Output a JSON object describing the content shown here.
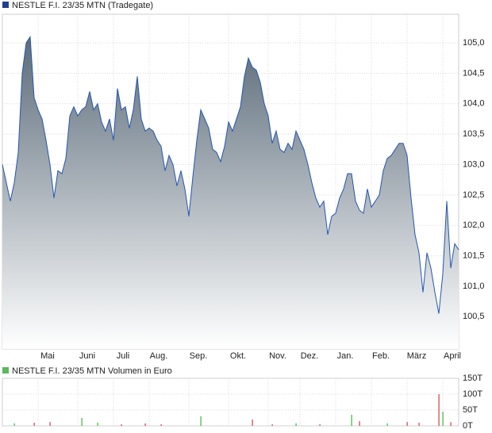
{
  "chart_data": [
    {
      "type": "area",
      "title": "NESTLE F.I. 23/35 MTN (Tradegate)",
      "title_marker_color": "#1f3f8f",
      "color": "#2455b0",
      "fill_top": "#5c6c7a",
      "fill_bottom": "#ffffff",
      "grid": true,
      "categories": [
        null,
        null,
        null,
        null,
        null,
        null,
        null,
        null,
        null,
        "Mai",
        null,
        null,
        null,
        null,
        null,
        null,
        null,
        null,
        null,
        "Juni",
        null,
        null,
        null,
        null,
        null,
        null,
        null,
        null,
        "Juli",
        null,
        null,
        null,
        null,
        null,
        null,
        null,
        null,
        "Aug.",
        null,
        null,
        null,
        null,
        null,
        null,
        null,
        null,
        null,
        "Sep.",
        null,
        null,
        null,
        null,
        null,
        null,
        null,
        null,
        null,
        "Okt.",
        null,
        null,
        null,
        null,
        null,
        null,
        null,
        null,
        null,
        "Nov.",
        null,
        null,
        null,
        null,
        null,
        null,
        null,
        "Dez.",
        null,
        null,
        null,
        null,
        null,
        null,
        null,
        null,
        "Jan.",
        null,
        null,
        null,
        null,
        null,
        null,
        null,
        null,
        "Feb.",
        null,
        null,
        null,
        null,
        null,
        null,
        null,
        null,
        "März",
        null,
        null,
        null,
        null,
        null,
        null,
        null,
        null,
        "April",
        null,
        null,
        null,
        null
      ],
      "values": [
        103.0,
        102.7,
        102.4,
        102.7,
        103.2,
        104.5,
        105.0,
        105.1,
        104.1,
        103.9,
        103.75,
        103.4,
        103.0,
        102.45,
        102.9,
        102.85,
        103.1,
        103.8,
        103.95,
        103.8,
        103.9,
        103.95,
        104.2,
        103.9,
        104.0,
        103.7,
        103.55,
        103.75,
        103.4,
        104.25,
        103.9,
        103.95,
        103.6,
        103.9,
        104.45,
        103.75,
        103.55,
        103.6,
        103.55,
        103.4,
        103.3,
        102.9,
        103.15,
        103.0,
        102.65,
        102.9,
        102.6,
        102.15,
        102.8,
        103.4,
        103.9,
        103.75,
        103.6,
        103.25,
        103.2,
        103.05,
        103.3,
        103.7,
        103.55,
        103.75,
        103.95,
        104.45,
        104.75,
        104.6,
        104.55,
        104.35,
        104.0,
        103.8,
        103.35,
        103.55,
        103.25,
        103.2,
        103.35,
        103.25,
        103.55,
        103.4,
        103.25,
        103.0,
        102.7,
        102.45,
        102.3,
        102.4,
        101.85,
        102.15,
        102.2,
        102.45,
        102.6,
        102.85,
        102.85,
        102.4,
        102.25,
        102.2,
        102.6,
        102.3,
        102.4,
        102.5,
        102.9,
        103.1,
        103.15,
        103.25,
        103.35,
        103.35,
        103.15,
        102.45,
        101.85,
        101.55,
        100.9,
        101.55,
        101.3,
        100.9,
        100.55,
        101.2,
        102.4,
        101.3,
        101.7,
        101.6
      ],
      "ylim": [
        99.97,
        105.47
      ],
      "yticks": [
        {
          "value": 100.5,
          "label": "100,5"
        },
        {
          "value": 101,
          "label": "101,0"
        },
        {
          "value": 101.5,
          "label": "101,5"
        },
        {
          "value": 102,
          "label": "102,0"
        },
        {
          "value": 102.5,
          "label": "102,5"
        },
        {
          "value": 103,
          "label": "103,0"
        },
        {
          "value": 103.5,
          "label": "103,5"
        },
        {
          "value": 104,
          "label": "104,0"
        },
        {
          "value": 104.5,
          "label": "104,5"
        },
        {
          "value": 105,
          "label": "105,0"
        }
      ]
    },
    {
      "type": "bar",
      "title": "NESTLE F.I. 23/35 MTN Volumen in Euro",
      "title_marker_color": "#5cb85c",
      "up_color": "#3cb43c",
      "down_color": "#d04040",
      "values": [
        0,
        0,
        0,
        8,
        0,
        0,
        0,
        0,
        10,
        0,
        0,
        0,
        12,
        0,
        0,
        0,
        0,
        0,
        0,
        0,
        25,
        0,
        0,
        0,
        10,
        0,
        0,
        0,
        0,
        0,
        5,
        0,
        0,
        0,
        0,
        0,
        8,
        0,
        0,
        0,
        5,
        0,
        0,
        0,
        0,
        0,
        0,
        0,
        0,
        0,
        30,
        0,
        0,
        0,
        0,
        0,
        0,
        0,
        0,
        0,
        0,
        0,
        0,
        20,
        0,
        0,
        0,
        0,
        5,
        0,
        0,
        0,
        0,
        0,
        8,
        0,
        0,
        0,
        0,
        0,
        5,
        0,
        0,
        0,
        0,
        0,
        0,
        0,
        35,
        0,
        15,
        0,
        0,
        0,
        0,
        0,
        0,
        8,
        0,
        0,
        0,
        0,
        12,
        0,
        0,
        10,
        0,
        0,
        0,
        0,
        100,
        45,
        0,
        12,
        0,
        0
      ],
      "ylim": [
        0,
        150
      ],
      "yticks": [
        {
          "value": 0,
          "label": "0T"
        },
        {
          "value": 50,
          "label": "50T"
        },
        {
          "value": 100,
          "label": "100T"
        },
        {
          "value": 150,
          "label": "150T"
        }
      ]
    }
  ]
}
